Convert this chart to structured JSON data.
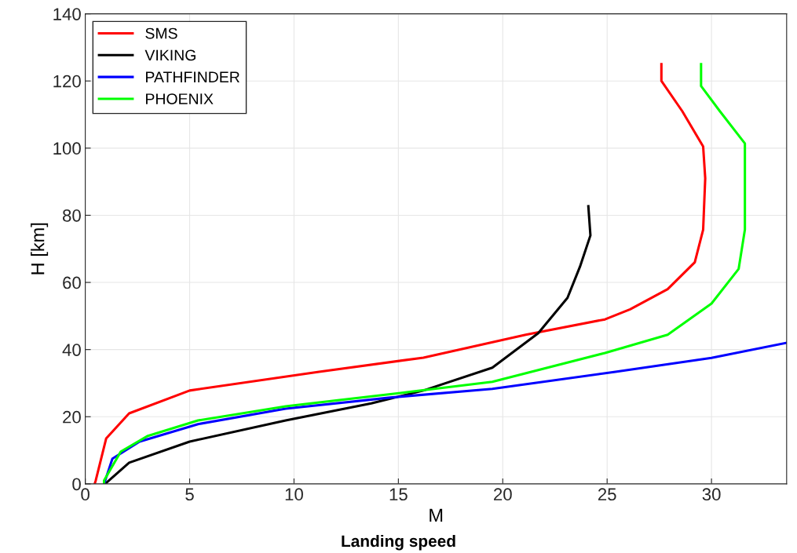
{
  "chart_data": {
    "type": "line",
    "xlabel": "M",
    "ylabel": "H [km]",
    "xlim": [
      0,
      33.6
    ],
    "ylim": [
      0,
      140
    ],
    "xticks": [
      0,
      5,
      10,
      15,
      20,
      25,
      30
    ],
    "yticks": [
      0,
      20,
      40,
      60,
      80,
      100,
      120,
      140
    ],
    "grid": true,
    "legend": "top left",
    "marker": "none",
    "line_style": "solid",
    "annotations": [
      "Landing speed"
    ],
    "series": [
      {
        "name": "SMS",
        "color": "#ff0000",
        "x": [
          0.45,
          0.5,
          1.0,
          2.1,
          5.0,
          11.2,
          16.2,
          21.1,
          24.9,
          26.1,
          27.9,
          29.2,
          29.6,
          29.7,
          29.6,
          28.6,
          27.6,
          27.6
        ],
        "values": [
          0,
          1,
          13.5,
          21,
          27.8,
          33.4,
          37.6,
          44.4,
          49,
          52,
          58,
          66,
          75.7,
          91,
          100.5,
          111,
          120,
          125
        ]
      },
      {
        "name": "VIKING",
        "color": "#000000",
        "x": [
          0.95,
          2.1,
          5.0,
          9.6,
          13.7,
          16.2,
          19.5,
          21.7,
          23.1,
          23.7,
          24.2,
          24.1
        ],
        "values": [
          0,
          6.3,
          12.6,
          18.9,
          24,
          27.8,
          34.6,
          44.9,
          55.4,
          64.7,
          74,
          82.7
        ]
      },
      {
        "name": "PATHFINDER",
        "color": "#0000ff",
        "x": [
          0.9,
          1.3,
          2.6,
          5.4,
          9.6,
          14.6,
          19.5,
          25.4,
          30.0,
          33.6
        ],
        "values": [
          0,
          7.5,
          12.6,
          17.8,
          22.4,
          25.7,
          28.3,
          33.4,
          37.5,
          42
        ]
      },
      {
        "name": "PHOENIX",
        "color": "#00ff00",
        "x": [
          0.9,
          0.9,
          1.7,
          3.0,
          5.4,
          9.6,
          15.4,
          19.5,
          24.9,
          27.9,
          30.0,
          31.3,
          31.6,
          31.6,
          31.6,
          30.4,
          29.5,
          29.5
        ],
        "values": [
          0,
          1,
          9.6,
          14.3,
          18.9,
          23.1,
          27.3,
          30.4,
          39,
          44.4,
          53.7,
          64,
          75.7,
          91,
          101.4,
          111,
          118.5,
          125
        ]
      }
    ]
  }
}
